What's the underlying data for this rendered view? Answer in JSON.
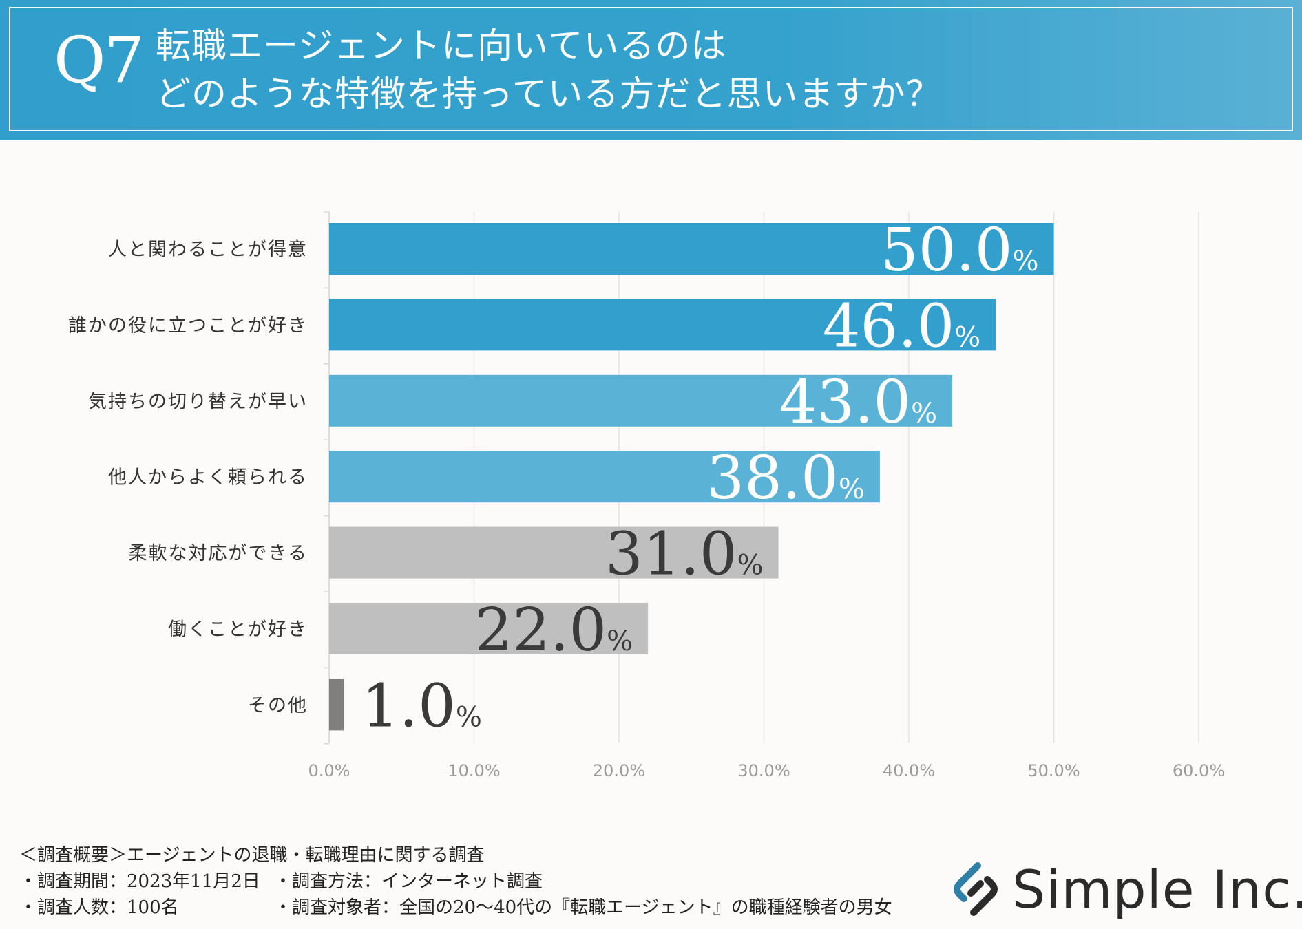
{
  "header": {
    "q_label": "Q7",
    "title_line1": "転職エージェントに向いているのは",
    "title_line2": "どのような特徴を持っている方だと思いますか？"
  },
  "chart_data": {
    "type": "bar",
    "orientation": "horizontal",
    "categories": [
      "人と関わることが得意",
      "誰かの役に立つことが好き",
      "気持ちの切り替えが早い",
      "他人からよく頼られる",
      "柔軟な対応ができる",
      "働くことが好き",
      "その他"
    ],
    "values": [
      50.0,
      46.0,
      43.0,
      38.0,
      31.0,
      22.0,
      1.0
    ],
    "value_labels": [
      "50.0",
      "46.0",
      "43.0",
      "38.0",
      "31.0",
      "22.0",
      "1.0"
    ],
    "unit": "%",
    "xlim": [
      0,
      60
    ],
    "xticks": [
      "0.0%",
      "10.0%",
      "20.0%",
      "30.0%",
      "40.0%",
      "50.0%",
      "60.0%"
    ],
    "grid": true,
    "bar_colors": [
      "#329fcc",
      "#329fcc",
      "#5ab2d6",
      "#5ab2d6",
      "#bfbfbf",
      "#bfbfbf",
      "#7f7f7f"
    ],
    "label_colors": [
      "#ffffff",
      "#ffffff",
      "#ffffff",
      "#ffffff",
      "#3a3a3a",
      "#3a3a3a",
      "#3a3a3a"
    ],
    "title": "",
    "xlabel": "",
    "ylabel": ""
  },
  "footer": {
    "line1": "＜調査概要＞エージェントの退職・転職理由に関する調査",
    "period": "・調査期間：2023年11月2日",
    "method": "・調査方法：インターネット調査",
    "count": "・調査人数：100名",
    "target": "・調査対象者：全国の20～40代の『転職エージェント』の職種経験者の男女"
  },
  "logo": {
    "text": "Simple Inc.",
    "icon": "link-chain-icon",
    "color": "#2b2b2b"
  }
}
